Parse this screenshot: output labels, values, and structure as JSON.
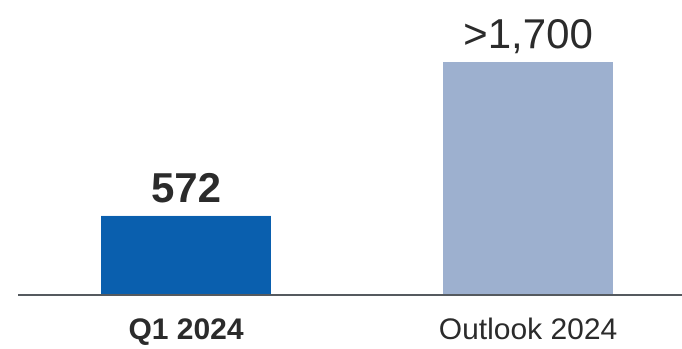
{
  "chart_data": {
    "type": "bar",
    "categories": [
      "Q1 2024",
      "Outlook 2024"
    ],
    "values": [
      572,
      1700
    ],
    "value_labels": [
      "572",
      ">1,700"
    ],
    "title": "",
    "xlabel": "",
    "ylabel": "",
    "ylim": [
      0,
      1700
    ],
    "grid": false,
    "legend": "none",
    "colors": [
      "#0a5fae",
      "#9db0cf"
    ],
    "label_bold": [
      true,
      false
    ]
  }
}
